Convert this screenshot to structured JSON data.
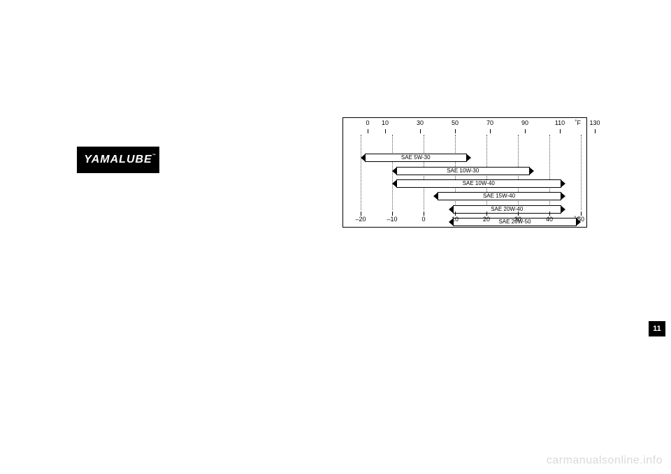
{
  "badge": {
    "text": "YAMALUBE"
  },
  "side_tab": {
    "number": "11"
  },
  "watermark": {
    "text": "carmanualsonline.info"
  },
  "chart": {
    "top_unit": "˚F",
    "bottom_unit": "˚C",
    "c_min": -20,
    "c_max": 50,
    "top_ticks_f": [
      0,
      10,
      30,
      50,
      70,
      90,
      110,
      130
    ],
    "bottom_ticks_c": [
      -20,
      -10,
      0,
      10,
      20,
      30,
      40,
      50
    ],
    "grid_c": [
      -20,
      -10,
      0,
      10,
      20,
      30,
      40,
      50
    ],
    "bar_color": "#ffffff",
    "border_color": "#000000",
    "grid_color": "#555555",
    "label_fontsize": 9,
    "bar_fontsize": 8,
    "bars": [
      {
        "label": "SAE 5W-30",
        "c_start": -20,
        "c_end": 15,
        "row": 0
      },
      {
        "label": "SAE 10W-30",
        "c_start": -10,
        "c_end": 35,
        "row": 1
      },
      {
        "label": "SAE 10W-40",
        "c_start": -10,
        "c_end": 45,
        "row": 2
      },
      {
        "label": "SAE 15W-40",
        "c_start": 3,
        "c_end": 45,
        "row": 3
      },
      {
        "label": "SAE 20W-40",
        "c_start": 8,
        "c_end": 45,
        "row": 4
      },
      {
        "label": "SAE 20W-50",
        "c_start": 8,
        "c_end": 50,
        "row": 5
      }
    ]
  }
}
